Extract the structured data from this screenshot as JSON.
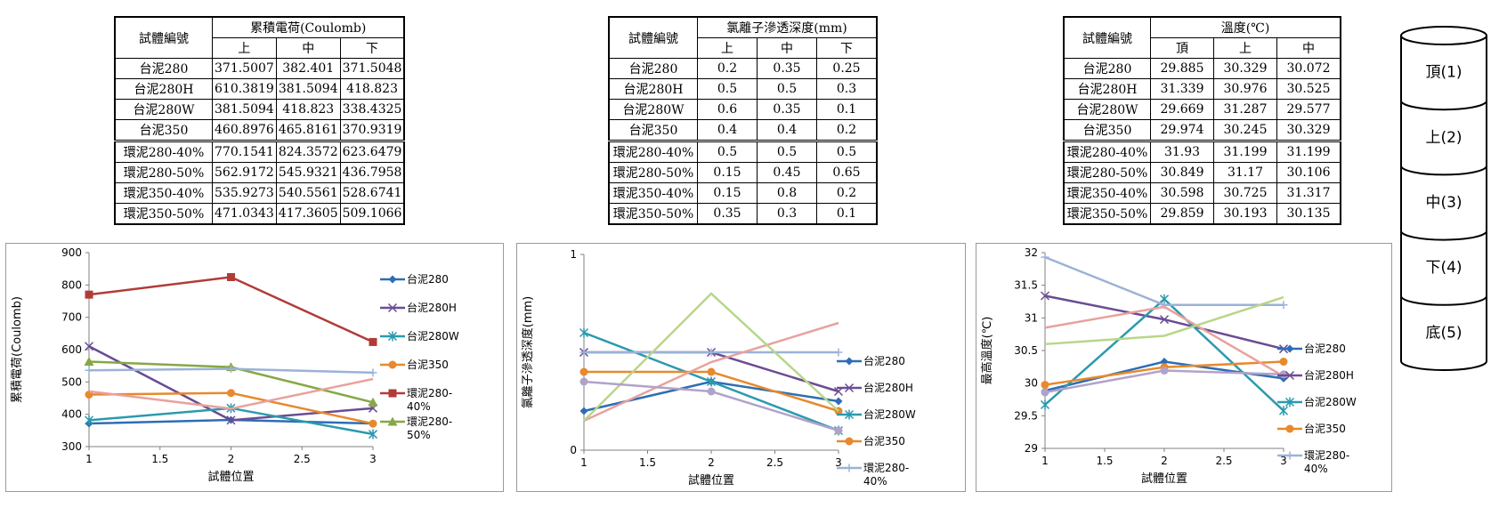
{
  "tables": [
    {
      "header_label": "試體編號",
      "title": "累積電荷(Coulomb)",
      "subheaders": [
        "上",
        "中",
        "下"
      ],
      "rows": [
        [
          "台泥280",
          "371.5007",
          "382.401",
          "371.5048"
        ],
        [
          "台泥280H",
          "610.3819",
          "381.5094",
          "418.823"
        ],
        [
          "台泥280W",
          "381.5094",
          "418.823",
          "338.4325"
        ],
        [
          "台泥350",
          "460.8976",
          "465.8161",
          "370.9319"
        ],
        [
          "環泥280-40%",
          "770.1541",
          "824.3572",
          "623.6479"
        ],
        [
          "環泥280-50%",
          "562.9172",
          "545.9321",
          "436.7958"
        ],
        [
          "環泥350-40%",
          "535.9273",
          "540.5561",
          "528.6741"
        ],
        [
          "環泥350-50%",
          "471.0343",
          "417.3605",
          "509.1066"
        ]
      ]
    },
    {
      "header_label": "試體編號",
      "title": "氯離子滲透深度(mm)",
      "subheaders": [
        "上",
        "中",
        "下"
      ],
      "rows": [
        [
          "台泥280",
          "0.2",
          "0.35",
          "0.25"
        ],
        [
          "台泥280H",
          "0.5",
          "0.5",
          "0.3"
        ],
        [
          "台泥280W",
          "0.6",
          "0.35",
          "0.1"
        ],
        [
          "台泥350",
          "0.4",
          "0.4",
          "0.2"
        ],
        [
          "環泥280-40%",
          "0.5",
          "0.5",
          "0.5"
        ],
        [
          "環泥280-50%",
          "0.15",
          "0.45",
          "0.65"
        ],
        [
          "環泥350-40%",
          "0.15",
          "0.8",
          "0.2"
        ],
        [
          "環泥350-50%",
          "0.35",
          "0.3",
          "0.1"
        ]
      ]
    },
    {
      "header_label": "試體編號",
      "title": "溫度(℃)",
      "subheaders": [
        "頂",
        "上",
        "中"
      ],
      "rows": [
        [
          "台泥280",
          "29.885",
          "30.329",
          "30.072"
        ],
        [
          "台泥280H",
          "31.339",
          "30.976",
          "30.525"
        ],
        [
          "台泥280W",
          "29.669",
          "31.287",
          "29.577"
        ],
        [
          "台泥350",
          "29.974",
          "30.245",
          "30.329"
        ],
        [
          "環泥280-40%",
          "31.93",
          "31.199",
          "31.199"
        ],
        [
          "環泥280-50%",
          "30.849",
          "31.17",
          "30.106"
        ],
        [
          "環泥350-40%",
          "30.598",
          "30.725",
          "31.317"
        ],
        [
          "環泥350-50%",
          "29.859",
          "30.193",
          "30.135"
        ]
      ]
    }
  ],
  "cylinder_labels": [
    "頂(1)",
    "上(2)",
    "中(3)",
    "下(4)",
    "底(5)"
  ],
  "chart_data": [
    {
      "type": "line",
      "xlabel": "試體位置",
      "ylabel": "累積電荷(Coulomb)",
      "x": [
        1,
        2,
        3
      ],
      "xlim": [
        1,
        3
      ],
      "ylim": [
        300,
        900
      ],
      "xticks": [
        "1",
        "1.5",
        "2",
        "2.5",
        "3"
      ],
      "yticks": [
        "300",
        "400",
        "500",
        "600",
        "700",
        "800",
        "900"
      ],
      "legend_position": "right",
      "series": [
        {
          "name": "台泥280",
          "values": [
            371.5007,
            382.401,
            371.5048
          ],
          "color": "#2E6DB4",
          "marker": "diamond",
          "legend": true
        },
        {
          "name": "台泥280H",
          "values": [
            610.3819,
            381.5094,
            418.823
          ],
          "color": "#6A4C93",
          "marker": "x",
          "legend": true
        },
        {
          "name": "台泥280W",
          "values": [
            381.5094,
            418.823,
            338.4325
          ],
          "color": "#2B9AAE",
          "marker": "star",
          "legend": true
        },
        {
          "name": "台泥350",
          "values": [
            460.8976,
            465.8161,
            370.9319
          ],
          "color": "#E8892C",
          "marker": "circle",
          "legend": true
        },
        {
          "name": "環泥280-40%",
          "values": [
            770.1541,
            824.3572,
            623.6479
          ],
          "color": "#B23B37",
          "marker": "square",
          "legend": true
        },
        {
          "name": "環泥280-50%",
          "values": [
            562.9172,
            545.9321,
            436.7958
          ],
          "color": "#86A844",
          "marker": "triangle",
          "legend": true
        },
        {
          "values": [
            535.9273,
            540.5561,
            528.6741
          ],
          "color": "#9BB2D8",
          "marker": "plus",
          "legend": false
        },
        {
          "values": [
            471.0343,
            417.3605,
            509.1066
          ],
          "color": "#E8A29E",
          "marker": "none",
          "legend": false
        }
      ]
    },
    {
      "type": "line",
      "xlabel": "試體位置",
      "ylabel": "氯離子滲透深度(mm)",
      "x": [
        1,
        2,
        3
      ],
      "xlim": [
        1,
        3
      ],
      "ylim": [
        0,
        1
      ],
      "xticks": [
        "1",
        "1.5",
        "2",
        "2.5",
        "3"
      ],
      "yticks": [
        "0",
        "1"
      ],
      "legend_position": "right",
      "series": [
        {
          "name": "台泥280",
          "values": [
            0.2,
            0.35,
            0.25
          ],
          "color": "#2E6DB4",
          "marker": "diamond",
          "legend": true
        },
        {
          "name": "台泥280H",
          "values": [
            0.5,
            0.5,
            0.3
          ],
          "color": "#6A4C93",
          "marker": "x",
          "legend": true
        },
        {
          "name": "台泥280W",
          "values": [
            0.6,
            0.35,
            0.1
          ],
          "color": "#2B9AAE",
          "marker": "star",
          "legend": true
        },
        {
          "name": "台泥350",
          "values": [
            0.4,
            0.4,
            0.2
          ],
          "color": "#E8892C",
          "marker": "circle",
          "legend": true
        },
        {
          "name": "環泥280-40%",
          "values": [
            0.5,
            0.5,
            0.5
          ],
          "color": "#9BB2D8",
          "marker": "plus",
          "legend": true
        },
        {
          "values": [
            0.15,
            0.45,
            0.65
          ],
          "color": "#E8A29E",
          "marker": "none",
          "legend": false
        },
        {
          "values": [
            0.15,
            0.8,
            0.2
          ],
          "color": "#B8D68A",
          "marker": "none",
          "legend": false
        },
        {
          "values": [
            0.35,
            0.3,
            0.1
          ],
          "color": "#B1A2C9",
          "marker": "circle",
          "legend": false
        }
      ]
    },
    {
      "type": "line",
      "xlabel": "試體位置",
      "ylabel": "最高溫度(℃)",
      "x": [
        1,
        2,
        3
      ],
      "xlim": [
        1,
        3
      ],
      "ylim": [
        29,
        32
      ],
      "xticks": [
        "1",
        "1.5",
        "2",
        "2.5",
        "3"
      ],
      "yticks": [
        "29",
        "29.5",
        "30",
        "30.5",
        "31",
        "31.5",
        "32"
      ],
      "legend_position": "right",
      "series": [
        {
          "name": "台泥280",
          "values": [
            29.885,
            30.329,
            30.072
          ],
          "color": "#2E6DB4",
          "marker": "diamond",
          "legend": true
        },
        {
          "name": "台泥280H",
          "values": [
            31.339,
            30.976,
            30.525
          ],
          "color": "#6A4C93",
          "marker": "x",
          "legend": true
        },
        {
          "name": "台泥280W",
          "values": [
            29.669,
            31.287,
            29.577
          ],
          "color": "#2B9AAE",
          "marker": "star",
          "legend": true
        },
        {
          "name": "台泥350",
          "values": [
            29.974,
            30.245,
            30.329
          ],
          "color": "#E8892C",
          "marker": "circle",
          "legend": true
        },
        {
          "name": "環泥280-40%",
          "values": [
            31.93,
            31.199,
            31.199
          ],
          "color": "#9BB2D8",
          "marker": "plus",
          "legend": true
        },
        {
          "values": [
            30.849,
            31.17,
            30.106
          ],
          "color": "#E8A29E",
          "marker": "none",
          "legend": false
        },
        {
          "values": [
            30.598,
            30.725,
            31.317
          ],
          "color": "#B8D68A",
          "marker": "none",
          "legend": false
        },
        {
          "values": [
            29.859,
            30.193,
            30.135
          ],
          "color": "#B1A2C9",
          "marker": "circle",
          "legend": false
        }
      ]
    }
  ]
}
